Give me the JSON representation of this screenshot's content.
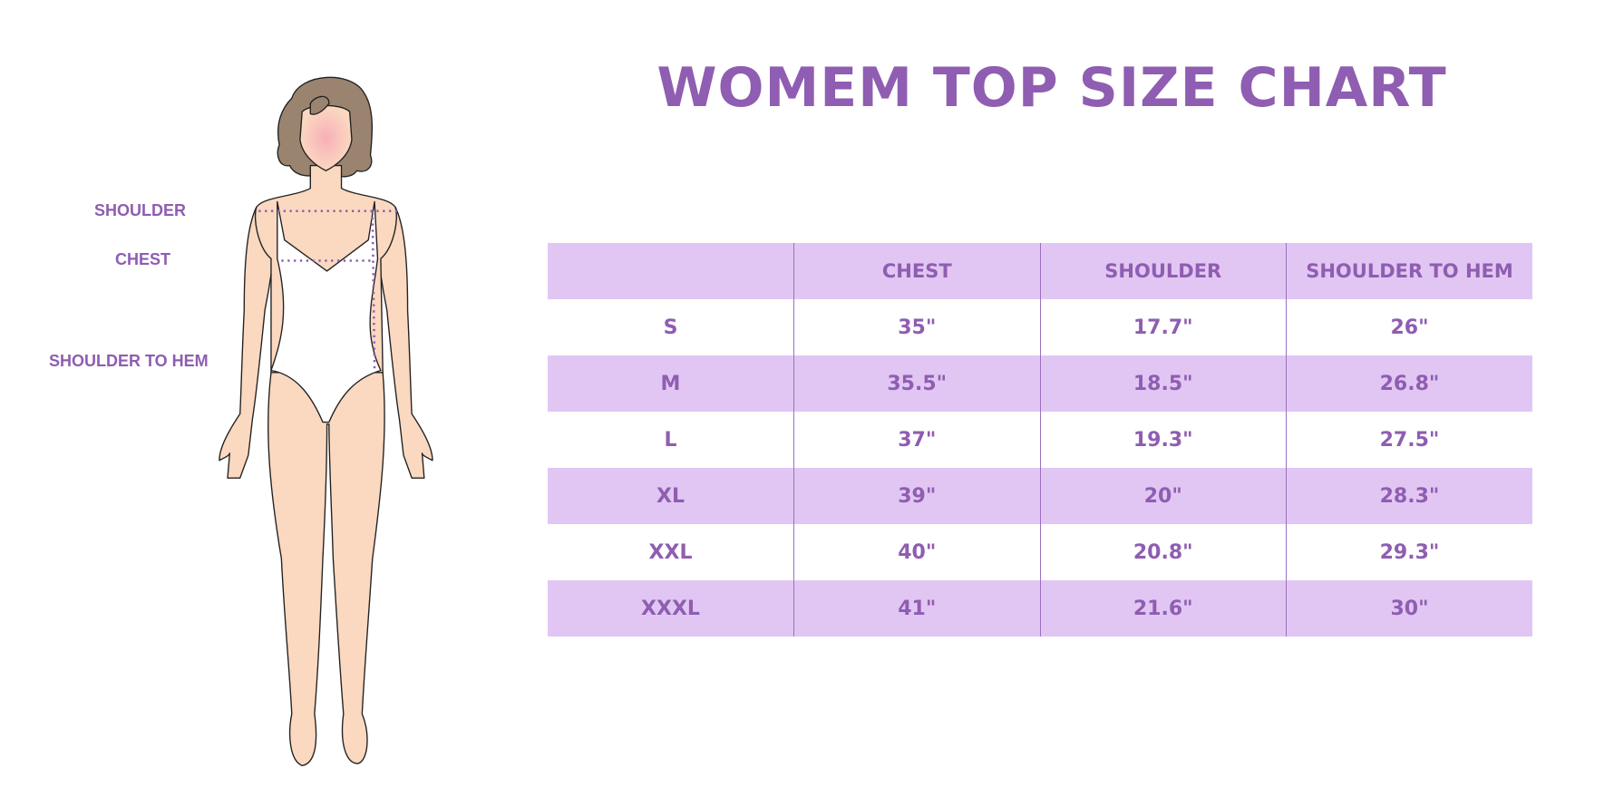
{
  "title": "WOMEM TOP SIZE CHART",
  "measure_labels": {
    "shoulder": "SHOULDER",
    "chest": "CHEST",
    "shoulder_to_hem": "SHOULDER TO HEM"
  },
  "colors": {
    "accent": "#8f5db1",
    "row_shade": "#e1c6f3",
    "skin": "#fbd8c0",
    "hair": "#9a8470"
  },
  "table": {
    "headers": [
      "",
      "CHEST",
      "SHOULDER",
      "SHOULDER TO HEM"
    ],
    "rows": [
      [
        "S",
        "35\"",
        "17.7\"",
        "26\""
      ],
      [
        "M",
        "35.5\"",
        "18.5\"",
        "26.8\""
      ],
      [
        "L",
        "37\"",
        "19.3\"",
        "27.5\""
      ],
      [
        "XL",
        "39\"",
        "20\"",
        "28.3\""
      ],
      [
        "XXL",
        "40\"",
        "20.8\"",
        "29.3\""
      ],
      [
        "XXXL",
        "41\"",
        "21.6\"",
        "30\""
      ]
    ]
  }
}
